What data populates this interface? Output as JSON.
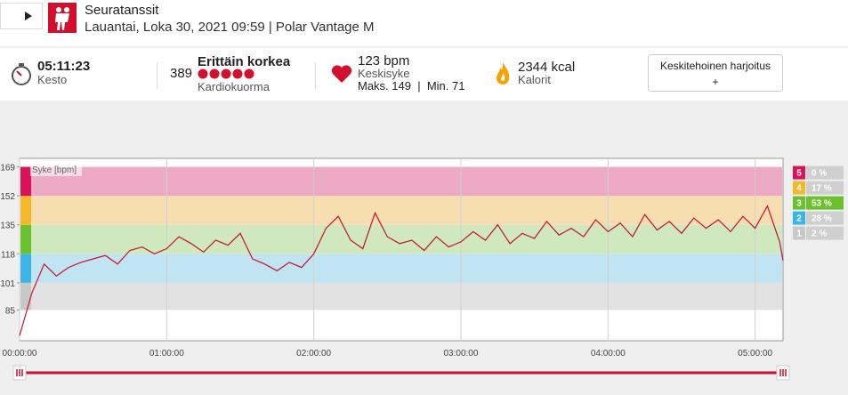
{
  "header": {
    "title": "Seuratanssit",
    "subtitle": "Lauantai, Loka 30, 2021 09:59 | Polar Vantage M"
  },
  "stats": {
    "duration": {
      "value": "05:11:23",
      "label": "Kesto"
    },
    "cardio_load": {
      "value": "389",
      "level": "Erittäin korkea",
      "label": "Kardiokuorma"
    },
    "heart_rate": {
      "value": "123 bpm",
      "label": "Keskisyke",
      "max": "Maks. 149",
      "separator": "|",
      "min": "Min. 71"
    },
    "calories": {
      "value": "2344 kcal",
      "label": "Kalorit"
    },
    "button": {
      "label": "Keskitehoinen harjoitus",
      "sub": "+"
    }
  },
  "chart_data": {
    "type": "line",
    "y_label": "Syke [bpm]",
    "x": [
      0,
      300,
      600,
      900,
      1200,
      1500,
      1800,
      2100,
      2400,
      2700,
      3000,
      3300,
      3600,
      3900,
      4200,
      4500,
      4800,
      5100,
      5400,
      5700,
      6000,
      6300,
      6600,
      6900,
      7200,
      7500,
      7800,
      8100,
      8400,
      8700,
      9000,
      9300,
      9600,
      9900,
      10200,
      10500,
      10800,
      11100,
      11400,
      11700,
      12000,
      12300,
      12600,
      12900,
      13200,
      13500,
      13800,
      14100,
      14400,
      14700,
      15000,
      15300,
      15600,
      15900,
      16200,
      16500,
      16800,
      17100,
      17400,
      17700,
      18000,
      18300,
      18600,
      18683
    ],
    "series": [
      {
        "color": "#c8102e",
        "values": [
          70,
          95,
          112,
          105,
          110,
          113,
          115,
          117,
          112,
          120,
          122,
          118,
          121,
          128,
          124,
          119,
          126,
          123,
          130,
          115,
          112,
          108,
          113,
          110,
          118,
          133,
          140,
          126,
          121,
          142,
          128,
          124,
          126,
          120,
          128,
          122,
          125,
          131,
          126,
          135,
          124,
          130,
          127,
          137,
          129,
          133,
          128,
          138,
          131,
          136,
          128,
          141,
          132,
          137,
          130,
          139,
          133,
          138,
          131,
          140,
          133,
          146,
          125,
          114
        ]
      }
    ],
    "xlim": [
      0,
      18683
    ],
    "xticks": [
      {
        "value": 0,
        "label": "00:00:00"
      },
      {
        "value": 3600,
        "label": "01:00:00"
      },
      {
        "value": 7200,
        "label": "02:00:00"
      },
      {
        "value": 10800,
        "label": "03:00:00"
      },
      {
        "value": 14400,
        "label": "04:00:00"
      },
      {
        "value": 18000,
        "label": "05:00:00"
      }
    ],
    "ylim": [
      67,
      174
    ],
    "yticks": [
      85,
      101,
      118,
      135,
      152,
      169
    ],
    "grid": true,
    "zones": [
      {
        "number": "1",
        "percent": "2 %",
        "color": "#c8c8c8",
        "band_color": "#e2e2e2"
      },
      {
        "number": "2",
        "percent": "28 %",
        "color": "#3ab5e6",
        "band_color": "#c0e4f2"
      },
      {
        "number": "3",
        "percent": "53 %",
        "color": "#6ac02f",
        "band_color": "#cfe8bd"
      },
      {
        "number": "4",
        "percent": "17 %",
        "color": "#f5b82a",
        "band_color": "#f6deb0"
      },
      {
        "number": "5",
        "percent": "0 %",
        "color": "#d8135a",
        "band_color": "#ecaac4"
      }
    ]
  }
}
